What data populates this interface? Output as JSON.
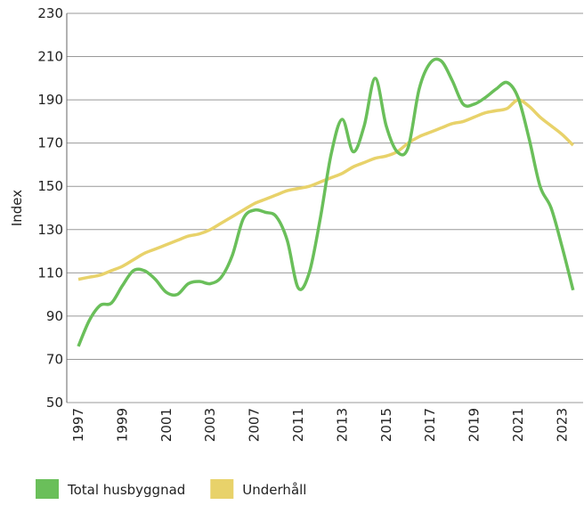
{
  "chart_data": {
    "type": "line",
    "ylabel": "Index",
    "categories": [
      "1997",
      null,
      null,
      null,
      "1999",
      null,
      null,
      null,
      "2001",
      null,
      null,
      null,
      "2003",
      null,
      null,
      null,
      "2007",
      null,
      null,
      null,
      "2011",
      null,
      null,
      null,
      "2013",
      null,
      null,
      null,
      "2015",
      null,
      null,
      null,
      "2017",
      null,
      null,
      null,
      "2019",
      null,
      null,
      null,
      "2021",
      null,
      null,
      null,
      "2023",
      null
    ],
    "series": [
      {
        "name": "Total husbyggnad",
        "color": "#6abf5a",
        "values": [
          76,
          88,
          95,
          96,
          104,
          111,
          111,
          107,
          101,
          100,
          105,
          106,
          105,
          108,
          118,
          135,
          139,
          138,
          136,
          125,
          103,
          110,
          135,
          165,
          181,
          166,
          178,
          200,
          178,
          166,
          168,
          195,
          207,
          208,
          199,
          188,
          188,
          191,
          195,
          198,
          191,
          172,
          150,
          140,
          122,
          102
        ]
      },
      {
        "name": "Underhåll",
        "color": "#e8d26a",
        "values": [
          107,
          108,
          109,
          111,
          113,
          116,
          119,
          121,
          123,
          125,
          127,
          128,
          130,
          133,
          136,
          139,
          142,
          144,
          146,
          148,
          149,
          150,
          152,
          154,
          156,
          159,
          161,
          163,
          164,
          166,
          170,
          173,
          175,
          177,
          179,
          180,
          182,
          184,
          185,
          186,
          190,
          187,
          182,
          178,
          174,
          169
        ]
      }
    ],
    "ylim": [
      50,
      230
    ],
    "yticks": [
      50,
      70,
      90,
      110,
      130,
      150,
      170,
      190,
      210,
      230
    ],
    "grid": true
  }
}
